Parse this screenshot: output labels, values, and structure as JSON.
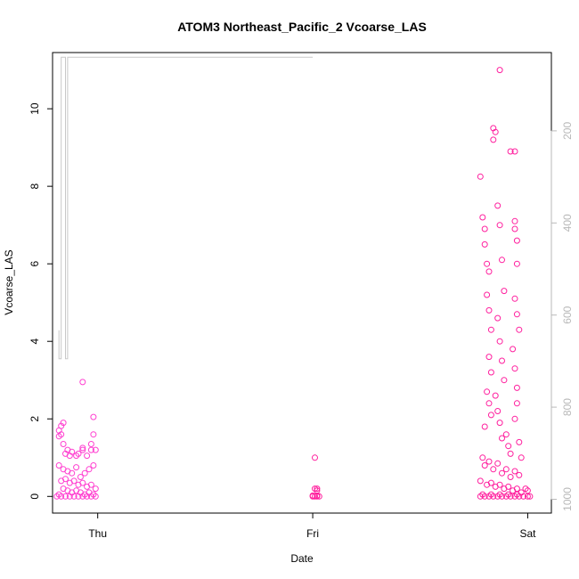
{
  "chart_data": {
    "type": "scatter",
    "title": "ATOM3 Northeast_Pacific_2 Vcoarse_LAS",
    "xlabel": "Date",
    "ylabel": "Vcoarse_LAS",
    "x_ticks": [
      {
        "x": 1.0,
        "label": "Thu"
      },
      {
        "x": 2.0,
        "label": "Fri"
      },
      {
        "x": 3.0,
        "label": "Sat"
      }
    ],
    "xlim": [
      0.79,
      3.11
    ],
    "ylim": [
      -0.43,
      11.45
    ],
    "y_ticks": [
      0,
      2,
      4,
      6,
      8,
      10
    ],
    "y2_label_ticks": [
      200,
      400,
      600,
      800,
      1000
    ],
    "y2lim_top_to_bottom": [
      30,
      1030
    ],
    "colors": {
      "points": "#ff1f9e",
      "points_alt": "#ff3fd0",
      "line": "#c8c8c8"
    },
    "series": [
      {
        "kind": "points",
        "values": [
          [
            0.82,
            1.55
          ],
          [
            0.82,
            1.7
          ],
          [
            0.83,
            1.82
          ],
          [
            0.84,
            1.9
          ],
          [
            0.83,
            1.6
          ],
          [
            0.84,
            1.35
          ],
          [
            0.85,
            1.1
          ],
          [
            0.86,
            1.2
          ],
          [
            0.87,
            1.05
          ],
          [
            0.88,
            1.15
          ],
          [
            0.9,
            1.05
          ],
          [
            0.91,
            1.1
          ],
          [
            0.93,
            1.25
          ],
          [
            0.93,
            1.2
          ],
          [
            0.95,
            1.05
          ],
          [
            0.97,
            1.2
          ],
          [
            0.98,
            2.05
          ],
          [
            0.98,
            1.6
          ],
          [
            0.99,
            1.2
          ],
          [
            0.98,
            0.8
          ],
          [
            0.93,
            2.95
          ],
          [
            0.97,
            1.35
          ],
          [
            0.82,
            0.8
          ],
          [
            0.84,
            0.7
          ],
          [
            0.86,
            0.65
          ],
          [
            0.88,
            0.6
          ],
          [
            0.9,
            0.75
          ],
          [
            0.92,
            0.5
          ],
          [
            0.94,
            0.6
          ],
          [
            0.96,
            0.7
          ],
          [
            0.83,
            0.4
          ],
          [
            0.85,
            0.45
          ],
          [
            0.87,
            0.35
          ],
          [
            0.89,
            0.4
          ],
          [
            0.91,
            0.3
          ],
          [
            0.93,
            0.35
          ],
          [
            0.95,
            0.25
          ],
          [
            0.97,
            0.3
          ],
          [
            0.99,
            0.2
          ],
          [
            0.84,
            0.2
          ],
          [
            0.86,
            0.15
          ],
          [
            0.88,
            0.1
          ],
          [
            0.9,
            0.15
          ],
          [
            0.92,
            0.1
          ],
          [
            0.94,
            0.05
          ],
          [
            0.96,
            0.1
          ],
          [
            0.98,
            0.05
          ],
          [
            0.82,
            0.05
          ],
          [
            0.85,
            0.0
          ],
          [
            0.87,
            0.0
          ],
          [
            0.89,
            0.0
          ],
          [
            0.91,
            0.0
          ],
          [
            0.93,
            0.0
          ],
          [
            0.95,
            0.0
          ],
          [
            0.97,
            0.0
          ],
          [
            0.99,
            0.0
          ],
          [
            0.83,
            0.0
          ],
          [
            0.81,
            0.0
          ],
          [
            2.01,
            1.0
          ],
          [
            2.01,
            0.2
          ],
          [
            2.02,
            0.15
          ],
          [
            2.02,
            0.2
          ],
          [
            2.0,
            0.0
          ],
          [
            2.01,
            0.0
          ],
          [
            2.02,
            0.0
          ],
          [
            2.03,
            0.0
          ],
          [
            2.0,
            0.02
          ],
          [
            2.02,
            0.02
          ],
          [
            2.78,
            8.25
          ],
          [
            2.79,
            7.2
          ],
          [
            2.8,
            6.9
          ],
          [
            2.8,
            6.5
          ],
          [
            2.81,
            6.0
          ],
          [
            2.82,
            5.8
          ],
          [
            2.81,
            5.2
          ],
          [
            2.82,
            4.8
          ],
          [
            2.83,
            4.3
          ],
          [
            2.82,
            3.6
          ],
          [
            2.83,
            3.2
          ],
          [
            2.81,
            2.7
          ],
          [
            2.82,
            2.4
          ],
          [
            2.83,
            2.1
          ],
          [
            2.8,
            1.8
          ],
          [
            2.84,
            9.5
          ],
          [
            2.84,
            9.2
          ],
          [
            2.85,
            9.4
          ],
          [
            2.86,
            7.5
          ],
          [
            2.87,
            7.0
          ],
          [
            2.88,
            6.1
          ],
          [
            2.89,
            5.3
          ],
          [
            2.86,
            4.6
          ],
          [
            2.87,
            4.0
          ],
          [
            2.88,
            3.5
          ],
          [
            2.89,
            3.0
          ],
          [
            2.85,
            2.6
          ],
          [
            2.86,
            2.2
          ],
          [
            2.87,
            1.9
          ],
          [
            2.88,
            1.5
          ],
          [
            2.87,
            11.0
          ],
          [
            2.92,
            8.9
          ],
          [
            2.94,
            8.9
          ],
          [
            2.94,
            7.1
          ],
          [
            2.94,
            6.9
          ],
          [
            2.95,
            6.6
          ],
          [
            2.95,
            6.0
          ],
          [
            2.94,
            5.1
          ],
          [
            2.95,
            4.7
          ],
          [
            2.96,
            4.3
          ],
          [
            2.93,
            3.8
          ],
          [
            2.94,
            3.3
          ],
          [
            2.95,
            2.8
          ],
          [
            2.95,
            2.4
          ],
          [
            2.94,
            2.0
          ],
          [
            2.9,
            1.6
          ],
          [
            2.91,
            1.3
          ],
          [
            2.92,
            1.1
          ],
          [
            2.96,
            1.4
          ],
          [
            2.97,
            1.0
          ],
          [
            2.79,
            1.0
          ],
          [
            2.8,
            0.8
          ],
          [
            2.82,
            0.9
          ],
          [
            2.84,
            0.7
          ],
          [
            2.86,
            0.85
          ],
          [
            2.88,
            0.6
          ],
          [
            2.9,
            0.7
          ],
          [
            2.92,
            0.5
          ],
          [
            2.94,
            0.65
          ],
          [
            2.96,
            0.55
          ],
          [
            2.78,
            0.4
          ],
          [
            2.81,
            0.3
          ],
          [
            2.83,
            0.35
          ],
          [
            2.85,
            0.25
          ],
          [
            2.87,
            0.3
          ],
          [
            2.89,
            0.2
          ],
          [
            2.91,
            0.25
          ],
          [
            2.93,
            0.15
          ],
          [
            2.95,
            0.2
          ],
          [
            2.97,
            0.1
          ],
          [
            2.99,
            0.2
          ],
          [
            3.0,
            0.15
          ],
          [
            2.78,
            0.0
          ],
          [
            2.8,
            0.0
          ],
          [
            2.82,
            0.0
          ],
          [
            2.84,
            0.0
          ],
          [
            2.86,
            0.0
          ],
          [
            2.88,
            0.0
          ],
          [
            2.9,
            0.0
          ],
          [
            2.92,
            0.0
          ],
          [
            2.94,
            0.0
          ],
          [
            2.96,
            0.0
          ],
          [
            2.98,
            0.0
          ],
          [
            3.0,
            0.0
          ],
          [
            3.01,
            0.0
          ],
          [
            2.79,
            0.05
          ],
          [
            2.83,
            0.05
          ],
          [
            2.87,
            0.05
          ],
          [
            2.91,
            0.05
          ],
          [
            2.95,
            0.05
          ]
        ]
      },
      {
        "kind": "line",
        "axis": "right",
        "values": [
          [
            0.82,
            633
          ],
          [
            0.82,
            695
          ],
          [
            0.83,
            695
          ],
          [
            0.83,
            40
          ],
          [
            0.84,
            40
          ],
          [
            0.84,
            40
          ],
          [
            0.85,
            40
          ],
          [
            0.85,
            695
          ],
          [
            0.86,
            695
          ],
          [
            0.86,
            40
          ],
          [
            0.87,
            40
          ],
          [
            0.87,
            40
          ],
          [
            0.89,
            40
          ],
          [
            0.89,
            40
          ],
          [
            0.9,
            40
          ],
          [
            0.9,
            40
          ],
          [
            0.91,
            40
          ],
          [
            0.91,
            40
          ],
          [
            0.92,
            40
          ],
          [
            0.92,
            40
          ],
          [
            0.93,
            40
          ],
          [
            0.93,
            40
          ],
          [
            0.94,
            40
          ],
          [
            0.94,
            40
          ],
          [
            0.95,
            40
          ],
          [
            0.95,
            40
          ],
          [
            0.96,
            40
          ],
          [
            0.96,
            40
          ],
          [
            0.97,
            40
          ],
          [
            0.97,
            40
          ],
          [
            0.98,
            40
          ],
          [
            0.98,
            40
          ],
          [
            1.0,
            40
          ],
          [
            1.0,
            40
          ],
          [
            1.05,
            40
          ],
          [
            2.0,
            40
          ],
          [
            2.0,
            40
          ]
        ],
        "note": ""
      }
    ]
  }
}
